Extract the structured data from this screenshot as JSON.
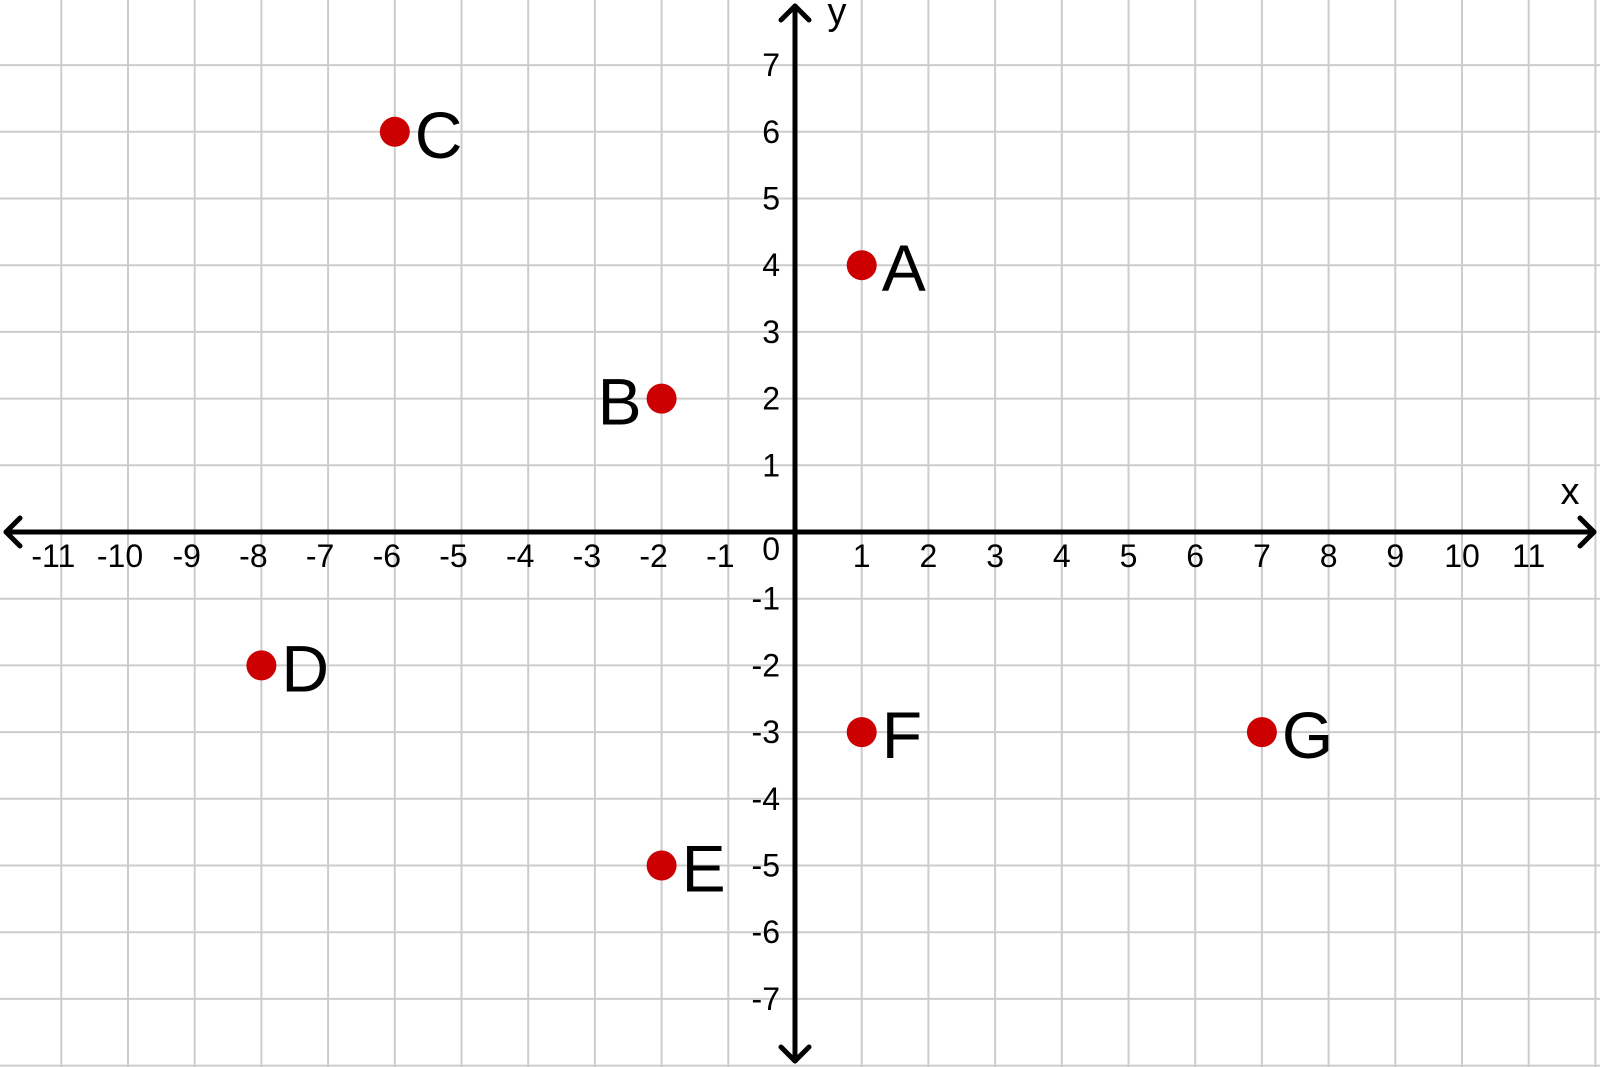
{
  "chart_data": {
    "type": "scatter",
    "xlabel": "x",
    "ylabel": "y",
    "xlim": [
      -12,
      12
    ],
    "ylim": [
      -8,
      8
    ],
    "grid": true,
    "x_ticks": [
      -11,
      -10,
      -9,
      -8,
      -7,
      -6,
      -5,
      -4,
      -3,
      -2,
      -1,
      1,
      2,
      3,
      4,
      5,
      6,
      7,
      8,
      9,
      10,
      11
    ],
    "y_ticks": [
      -7,
      -6,
      -5,
      -4,
      -3,
      -2,
      -1,
      1,
      2,
      3,
      4,
      5,
      6,
      7
    ],
    "origin_label": "0",
    "point_color": "#cc0000",
    "points": [
      {
        "label": "A",
        "x": 1,
        "y": 4,
        "label_side": "right"
      },
      {
        "label": "B",
        "x": -2,
        "y": 2,
        "label_side": "left"
      },
      {
        "label": "C",
        "x": -6,
        "y": 6,
        "label_side": "right"
      },
      {
        "label": "D",
        "x": -8,
        "y": -2,
        "label_side": "right"
      },
      {
        "label": "E",
        "x": -2,
        "y": -5,
        "label_side": "right"
      },
      {
        "label": "F",
        "x": 1,
        "y": -3,
        "label_side": "right"
      },
      {
        "label": "G",
        "x": 7,
        "y": -3,
        "label_side": "right"
      }
    ]
  }
}
